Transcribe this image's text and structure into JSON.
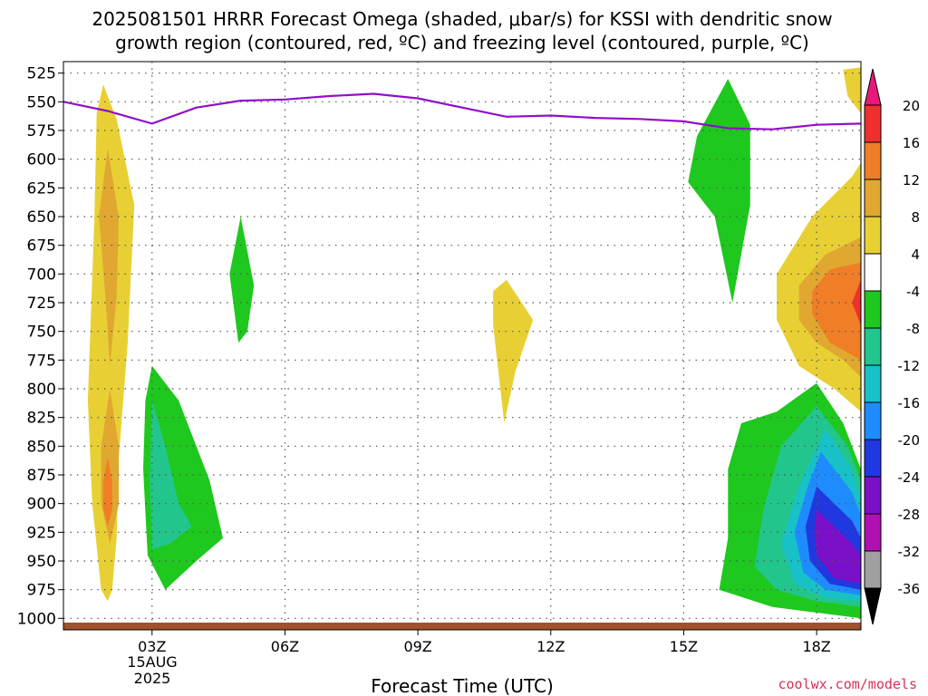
{
  "chart_data": {
    "type": "heatmap",
    "title_line1": "2025081501 HRRR Forecast Omega (shaded, μbar/s) for KSSI with dendritic snow",
    "title_line2": "growth region (contoured, red, ºC) and freezing level (contoured, purple, ºC)",
    "xlabel": "Forecast Time (UTC)",
    "credit": "coolwx.com/models",
    "x_ticks": [
      {
        "x": 3,
        "label": "03Z"
      },
      {
        "x": 6,
        "label": "06Z"
      },
      {
        "x": 9,
        "label": "09Z"
      },
      {
        "x": 12,
        "label": "12Z"
      },
      {
        "x": 15,
        "label": "15Z"
      },
      {
        "x": 18,
        "label": "18Z"
      }
    ],
    "x_date_lines": [
      "15AUG",
      "2025"
    ],
    "xlim": [
      1,
      19
    ],
    "y_ticks": [
      525,
      550,
      575,
      600,
      625,
      650,
      675,
      700,
      725,
      750,
      775,
      800,
      825,
      850,
      875,
      900,
      925,
      950,
      975,
      1000
    ],
    "ylim": [
      515,
      1010
    ],
    "y_direction": "inverted",
    "grid": true,
    "colorbar": {
      "labels": [
        "20",
        "16",
        "12",
        "8",
        "4",
        "-4",
        "-8",
        "-12",
        "-16",
        "-20",
        "-24",
        "-28",
        "-32",
        "-36"
      ],
      "colors": [
        "#e8187a",
        "#f0302e",
        "#f07e26",
        "#e0a830",
        "#e8d034",
        "#ffffff",
        "#1ec81e",
        "#22c68c",
        "#18c0c8",
        "#1e8cff",
        "#2038e0",
        "#7a10c8",
        "#b010b0",
        "#a0a0a0",
        "#000000"
      ]
    },
    "freezing_level": {
      "color": "#9010c8",
      "x": [
        1,
        2,
        3,
        4,
        5,
        6,
        7,
        8,
        9,
        10,
        11,
        12,
        13,
        14,
        15,
        16,
        17,
        18,
        19
      ],
      "y": [
        550,
        558,
        569,
        555,
        549,
        548,
        545,
        543,
        547,
        555,
        563,
        562,
        564,
        565,
        567,
        573,
        574,
        570,
        569
      ]
    },
    "surface_color": "#a0522d",
    "regions": [
      {
        "value": 5,
        "color": "#e8d034",
        "points": [
          [
            1.9,
            535
          ],
          [
            2.2,
            565
          ],
          [
            2.6,
            640
          ],
          [
            2.45,
            760
          ],
          [
            2.25,
            860
          ],
          [
            2.2,
            930
          ],
          [
            2.1,
            975
          ],
          [
            2.0,
            985
          ],
          [
            1.85,
            975
          ],
          [
            1.65,
            900
          ],
          [
            1.55,
            810
          ],
          [
            1.7,
            650
          ],
          [
            1.75,
            560
          ]
        ]
      },
      {
        "value": 9,
        "color": "#e0a830",
        "points": [
          [
            2.0,
            590
          ],
          [
            2.25,
            650
          ],
          [
            2.2,
            720
          ],
          [
            2.05,
            780
          ],
          [
            1.95,
            720
          ],
          [
            1.8,
            650
          ]
        ]
      },
      {
        "value": 9,
        "color": "#e0a830",
        "points": [
          [
            2.05,
            800
          ],
          [
            2.25,
            850
          ],
          [
            2.25,
            900
          ],
          [
            2.05,
            935
          ],
          [
            1.85,
            900
          ],
          [
            1.85,
            850
          ]
        ]
      },
      {
        "value": 13,
        "color": "#f07e26",
        "points": [
          [
            2.0,
            860
          ],
          [
            2.1,
            880
          ],
          [
            2.1,
            905
          ],
          [
            2.0,
            920
          ],
          [
            1.9,
            905
          ],
          [
            1.9,
            880
          ]
        ]
      },
      {
        "value": -5,
        "color": "#1ec81e",
        "points": [
          [
            3.0,
            780
          ],
          [
            3.6,
            810
          ],
          [
            4.3,
            880
          ],
          [
            4.6,
            930
          ],
          [
            4.0,
            950
          ],
          [
            3.3,
            975
          ],
          [
            2.9,
            945
          ],
          [
            2.8,
            870
          ],
          [
            2.85,
            810
          ]
        ]
      },
      {
        "value": -9,
        "color": "#22c68c",
        "points": [
          [
            3.0,
            810
          ],
          [
            3.3,
            850
          ],
          [
            3.6,
            900
          ],
          [
            3.9,
            920
          ],
          [
            3.4,
            935
          ],
          [
            3.0,
            940
          ],
          [
            2.95,
            880
          ]
        ]
      },
      {
        "value": -5,
        "color": "#1ec81e",
        "points": [
          [
            5.0,
            650
          ],
          [
            5.3,
            710
          ],
          [
            5.15,
            750
          ],
          [
            4.95,
            760
          ],
          [
            4.75,
            700
          ],
          [
            4.9,
            670
          ]
        ]
      },
      {
        "value": 5,
        "color": "#e8d034",
        "points": [
          [
            11.0,
            705
          ],
          [
            11.6,
            740
          ],
          [
            11.2,
            785
          ],
          [
            10.95,
            830
          ],
          [
            10.7,
            745
          ],
          [
            10.7,
            715
          ]
        ]
      },
      {
        "value": -5,
        "color": "#1ec81e",
        "points": [
          [
            16.0,
            530
          ],
          [
            16.5,
            570
          ],
          [
            16.5,
            640
          ],
          [
            16.1,
            725
          ],
          [
            15.7,
            650
          ],
          [
            15.1,
            620
          ],
          [
            15.3,
            580
          ]
        ]
      },
      {
        "value": 5,
        "color": "#e8d034",
        "points": [
          [
            18.6,
            522
          ],
          [
            19.0,
            520
          ],
          [
            19.0,
            560
          ],
          [
            18.7,
            545
          ]
        ]
      },
      {
        "value": 5,
        "color": "#e8d034",
        "points": [
          [
            19.0,
            603
          ],
          [
            18.8,
            615
          ],
          [
            17.9,
            650
          ],
          [
            17.1,
            700
          ],
          [
            17.1,
            740
          ],
          [
            17.6,
            780
          ],
          [
            18.4,
            800
          ],
          [
            19.0,
            820
          ]
        ]
      },
      {
        "value": 9,
        "color": "#e0a830",
        "points": [
          [
            19.0,
            668
          ],
          [
            18.2,
            683
          ],
          [
            17.6,
            710
          ],
          [
            17.6,
            740
          ],
          [
            18.0,
            760
          ],
          [
            18.6,
            775
          ],
          [
            19.0,
            790
          ]
        ]
      },
      {
        "value": 13,
        "color": "#f07e26",
        "points": [
          [
            19.0,
            690
          ],
          [
            18.3,
            696
          ],
          [
            17.9,
            715
          ],
          [
            17.9,
            735
          ],
          [
            18.3,
            760
          ],
          [
            19.0,
            775
          ]
        ]
      },
      {
        "value": 17,
        "color": "#f0302e",
        "points": [
          [
            18.8,
            725
          ],
          [
            19.0,
            705
          ],
          [
            19.0,
            745
          ]
        ]
      },
      {
        "value": -5,
        "color": "#1ec81e",
        "points": [
          [
            18.0,
            795
          ],
          [
            18.6,
            830
          ],
          [
            19.0,
            870
          ],
          [
            19.0,
            1000
          ],
          [
            18.0,
            995
          ],
          [
            17.0,
            990
          ],
          [
            15.8,
            975
          ],
          [
            16.0,
            930
          ],
          [
            16.0,
            870
          ],
          [
            16.3,
            830
          ],
          [
            17.1,
            820
          ]
        ]
      },
      {
        "value": -9,
        "color": "#22c68c",
        "points": [
          [
            18.0,
            815
          ],
          [
            18.7,
            850
          ],
          [
            19.0,
            880
          ],
          [
            19.0,
            990
          ],
          [
            18.0,
            985
          ],
          [
            17.1,
            975
          ],
          [
            16.6,
            955
          ],
          [
            16.8,
            905
          ],
          [
            17.2,
            850
          ]
        ]
      },
      {
        "value": -13,
        "color": "#18c0c8",
        "points": [
          [
            18.2,
            835
          ],
          [
            18.8,
            870
          ],
          [
            19.0,
            895
          ],
          [
            19.0,
            985
          ],
          [
            18.2,
            982
          ],
          [
            17.5,
            970
          ],
          [
            17.2,
            935
          ],
          [
            17.6,
            885
          ]
        ]
      },
      {
        "value": -17,
        "color": "#1e8cff",
        "points": [
          [
            18.1,
            855
          ],
          [
            18.8,
            890
          ],
          [
            19.0,
            910
          ],
          [
            19.0,
            980
          ],
          [
            18.2,
            975
          ],
          [
            17.7,
            960
          ],
          [
            17.5,
            925
          ],
          [
            17.8,
            885
          ]
        ]
      },
      {
        "value": -21,
        "color": "#2038e0",
        "points": [
          [
            18.0,
            885
          ],
          [
            18.8,
            915
          ],
          [
            19.0,
            930
          ],
          [
            19.0,
            975
          ],
          [
            18.3,
            970
          ],
          [
            17.85,
            950
          ],
          [
            17.75,
            920
          ]
        ]
      },
      {
        "value": -25,
        "color": "#7a10c8",
        "points": [
          [
            18.0,
            905
          ],
          [
            18.8,
            935
          ],
          [
            19.0,
            945
          ],
          [
            19.0,
            970
          ],
          [
            18.4,
            965
          ],
          [
            18.0,
            945
          ],
          [
            17.95,
            925
          ]
        ]
      }
    ]
  }
}
